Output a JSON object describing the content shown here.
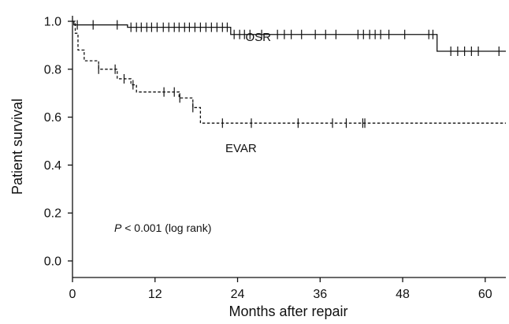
{
  "chart_data": {
    "type": "line",
    "xlabel": "Months after repair",
    "ylabel": "Patient survival",
    "xlim": [
      0,
      63
    ],
    "ylim": [
      0,
      1.0
    ],
    "x_ticks": [
      0,
      12,
      24,
      36,
      48,
      60
    ],
    "x_tick_labels": [
      "0",
      "12",
      "24",
      "36",
      "48",
      "60"
    ],
    "y_ticks": [
      0.0,
      0.2,
      0.4,
      0.6,
      0.8,
      1.0
    ],
    "y_tick_labels": [
      "0.0",
      "0.2",
      "0.4",
      "0.6",
      "0.8",
      "1.0"
    ],
    "annotation": {
      "p_symbol": "P",
      "text": " < 0.001 (log rank)"
    },
    "grid": false,
    "series": [
      {
        "name": "OSR",
        "line_style": "solid",
        "label_at": [
          27,
          0.935
        ],
        "steps": [
          [
            0,
            1.0
          ],
          [
            0.2,
            0.985
          ],
          [
            8.0,
            0.975
          ],
          [
            23.0,
            0.945
          ],
          [
            53.0,
            0.875
          ],
          [
            63,
            0.875
          ]
        ],
        "censored_x": [
          0.7,
          3,
          6.5,
          8.5,
          9.3,
          10,
          10.8,
          11.5,
          12.3,
          13.2,
          14,
          14.8,
          15.5,
          16.3,
          17,
          17.8,
          18.6,
          19.4,
          20.2,
          21,
          21.8,
          22.5,
          23.5,
          24.3,
          25,
          25.8,
          27.5,
          29.8,
          30.8,
          31.8,
          33.3,
          35.3,
          36.8,
          38.3,
          41.5,
          42.3,
          43.2,
          44,
          44.8,
          46,
          48.3,
          51.8,
          52.4,
          55,
          56,
          57,
          58,
          59,
          62
        ]
      },
      {
        "name": "EVAR",
        "line_style": "dashed",
        "label_at": [
          24.5,
          0.47
        ],
        "steps": [
          [
            0,
            1.0
          ],
          [
            0.4,
            0.95
          ],
          [
            0.8,
            0.88
          ],
          [
            1.7,
            0.835
          ],
          [
            3.8,
            0.8
          ],
          [
            6.5,
            0.76
          ],
          [
            8.5,
            0.735
          ],
          [
            9.3,
            0.705
          ],
          [
            15.5,
            0.68
          ],
          [
            17.5,
            0.64
          ],
          [
            18.6,
            0.575
          ],
          [
            63,
            0.575
          ]
        ],
        "censored_x": [
          3.8,
          6.2,
          7.5,
          8.8,
          13.3,
          14.8,
          15.6,
          17.5,
          21.8,
          26,
          32.8,
          37.8,
          39.8,
          42.2,
          42.5
        ]
      }
    ]
  }
}
